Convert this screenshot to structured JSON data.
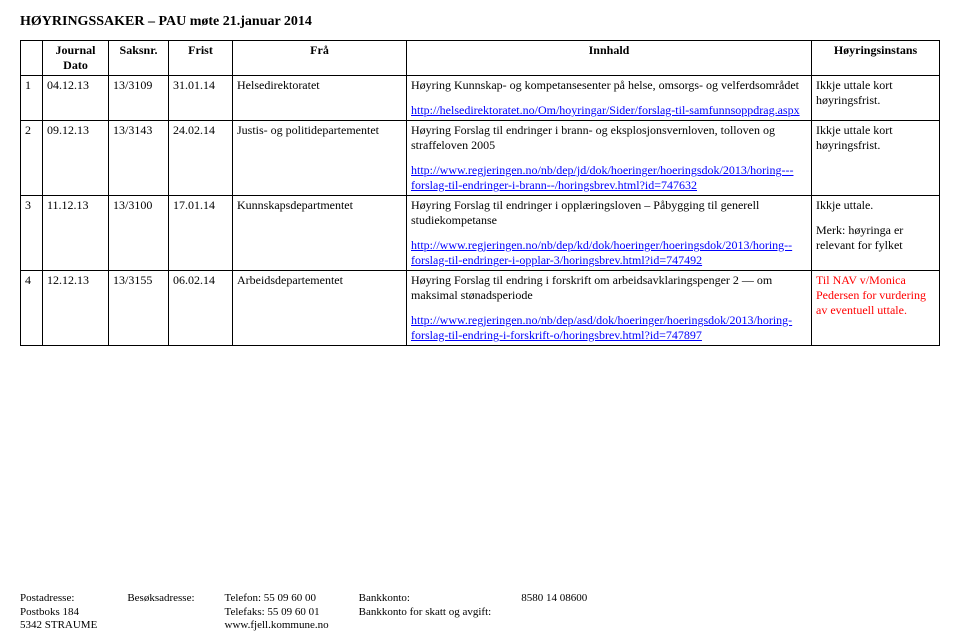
{
  "title": "HØYRINGSSAKER – PAU møte 21.januar 2014",
  "headers": [
    "",
    "Journal Dato",
    "Saksnr.",
    "Frist",
    "Frå",
    "Innhald",
    "Høyringsinstans"
  ],
  "rows": [
    {
      "num": "1",
      "date": "04.12.13",
      "saks": "13/3109",
      "frist": "31.01.14",
      "fra": "Helsedirektoratet",
      "innhald": [
        {
          "text": "Høyring Kunnskap- og kompetansesenter på helse, omsorgs- og velferdsområdet"
        },
        {
          "link": "http://helsedirektoratet.no/Om/hoyringar/Sider/forslag-til-samfunnsoppdrag.aspx"
        }
      ],
      "inst": "Ikkje uttale kort høyringsfrist."
    },
    {
      "num": "2",
      "date": "09.12.13",
      "saks": "13/3143",
      "frist": "24.02.14",
      "fra": "Justis- og politidepartementet",
      "innhald": [
        {
          "text": "Høyring Forslag til endringer i brann- og eksplosjonsvernloven, tolloven og straffeloven 2005"
        },
        {
          "link": "http://www.regjeringen.no/nb/dep/jd/dok/hoeringer/hoeringsdok/2013/horing---forslag-til-endringer-i-brann--/horingsbrev.html?id=747632"
        }
      ],
      "inst": "Ikkje uttale kort høyringsfrist."
    },
    {
      "num": "3",
      "date": "11.12.13",
      "saks": "13/3100",
      "frist": "17.01.14",
      "fra": "Kunnskapsdepartmentet",
      "innhald": [
        {
          "text": "Høyring Forslag til endringer i opplæringsloven – Påbygging til generell studiekompetanse"
        },
        {
          "link": "http://www.regjeringen.no/nb/dep/kd/dok/hoeringer/hoeringsdok/2013/horing--forslag-til-endringer-i-opplar-3/horingsbrev.html?id=747492"
        }
      ],
      "inst": "Ikkje uttale.",
      "inst_note": "Merk: høyringa er relevant for fylket"
    },
    {
      "num": "4",
      "date": "12.12.13",
      "saks": "13/3155",
      "frist": "06.02.14",
      "fra": "Arbeidsdepartementet",
      "innhald": [
        {
          "text": "Høyring Forslag til endring i forskrift om arbeidsavklaringspenger 2 — om maksimal stønadsperiode"
        },
        {
          "link": "http://www.regjeringen.no/nb/dep/asd/dok/hoeringer/hoeringsdok/2013/horing-forslag-til-endring-i-forskrift-o/horingsbrev.html?id=747897"
        }
      ],
      "inst_red": "Til NAV v/Monica Pedersen for vurdering av eventuell uttale."
    }
  ],
  "footer": {
    "cols": [
      {
        "label": "Postadresse:",
        "lines": [
          "Postboks 184",
          "5342 STRAUME"
        ]
      },
      {
        "label": "Besøksadresse:",
        "lines": []
      },
      {
        "label": "Telefon:   55 09 60 00",
        "lines": [
          "Telefaks: 55 09 60 01",
          "www.fjell.kommune.no"
        ]
      },
      {
        "label": "Bankkonto:",
        "lines": [
          "Bankkonto for skatt og avgift:"
        ]
      },
      {
        "label": "8580 14 08600",
        "lines": []
      }
    ]
  },
  "colors": {
    "link": "#0000ff",
    "text": "#000000",
    "bg": "#ffffff",
    "red": "#ff0000"
  }
}
